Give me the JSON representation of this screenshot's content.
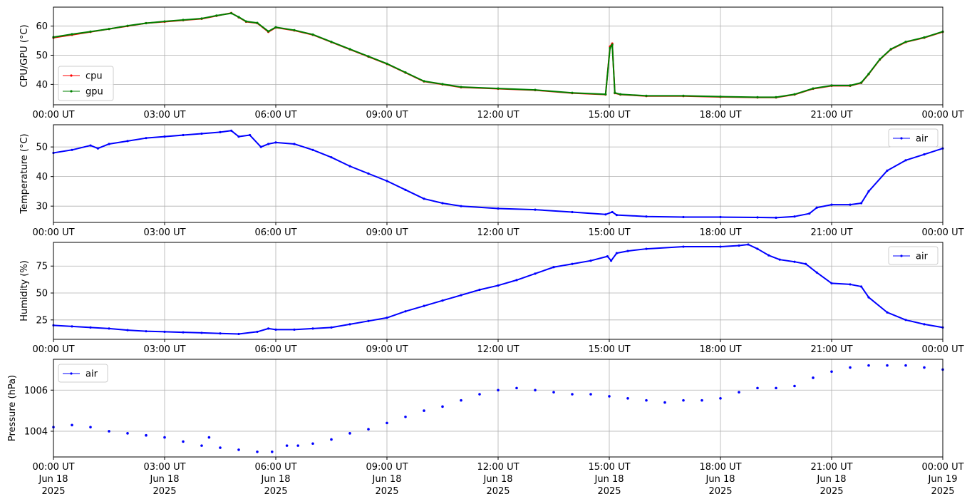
{
  "x_ticks": [
    "00:00 UT",
    "03:00 UT",
    "06:00 UT",
    "09:00 UT",
    "12:00 UT",
    "15:00 UT",
    "18:00 UT",
    "21:00 UT",
    "00:00 UT"
  ],
  "x_tick_dates": [
    "Jun 18",
    "Jun 18",
    "Jun 18",
    "Jun 18",
    "Jun 18",
    "Jun 18",
    "Jun 18",
    "Jun 18",
    "Jun 19"
  ],
  "x_tick_years": [
    "2025",
    "2025",
    "2025",
    "2025",
    "2025",
    "2025",
    "2025",
    "2025",
    "2025"
  ],
  "colors": {
    "cpu": "#ff0000",
    "gpu": "#008000",
    "air": "#0000ff",
    "grid": "#b0b0b0"
  },
  "chart_data": [
    {
      "type": "line",
      "title": "",
      "ylabel": "CPU/GPU (°C)",
      "ylim": [
        33,
        66.5
      ],
      "yticks": [
        40,
        50,
        60
      ],
      "xlim_hours": [
        0,
        24
      ],
      "grid": true,
      "legend_position": "lower-left",
      "series": [
        {
          "name": "cpu",
          "color": "#ff0000",
          "x": [
            0,
            0.5,
            1,
            1.5,
            2,
            2.5,
            3,
            3.5,
            4,
            4.4,
            4.8,
            5,
            5.2,
            5.5,
            5.8,
            6,
            6.5,
            7,
            7.5,
            8,
            8.5,
            9,
            9.5,
            10,
            10.5,
            11,
            12,
            13,
            14,
            14.9,
            15.02,
            15.08,
            15.15,
            15.3,
            16,
            17,
            18,
            19,
            19.5,
            20,
            20.5,
            21,
            21.5,
            21.8,
            22,
            22.3,
            22.6,
            23,
            23.5,
            24
          ],
          "values": [
            56,
            57,
            58,
            59,
            60,
            61,
            61.5,
            62,
            62.5,
            63.5,
            64.5,
            63,
            61.5,
            61,
            58,
            59.5,
            58.5,
            57,
            54.5,
            52,
            49.5,
            47,
            44,
            41,
            40,
            39,
            38.5,
            38,
            37,
            36.5,
            53,
            54,
            37,
            36.5,
            36,
            36,
            35.7,
            35.5,
            35.5,
            36.5,
            38.5,
            39.5,
            39.5,
            40.5,
            43.5,
            48.5,
            52,
            54.5,
            56,
            58
          ]
        },
        {
          "name": "gpu",
          "color": "#008000",
          "x": [
            0,
            0.5,
            1,
            1.5,
            2,
            2.5,
            3,
            3.5,
            4,
            4.4,
            4.8,
            5,
            5.2,
            5.5,
            5.8,
            6,
            6.5,
            7,
            7.5,
            8,
            8.5,
            9,
            9.5,
            10,
            10.5,
            11,
            12,
            13,
            14,
            14.9,
            15.02,
            15.08,
            15.15,
            15.3,
            16,
            17,
            18,
            19,
            19.5,
            20,
            20.5,
            21,
            21.5,
            21.8,
            22,
            22.3,
            22.6,
            23,
            23.5,
            24
          ],
          "values": [
            56.2,
            57.2,
            58.1,
            59,
            60.1,
            61,
            61.6,
            62.1,
            62.6,
            63.6,
            64.4,
            63.1,
            61.6,
            61.1,
            58.2,
            59.6,
            58.6,
            57.1,
            54.6,
            52.1,
            49.6,
            47.1,
            44.1,
            41.1,
            40.1,
            39.1,
            38.6,
            38.1,
            37.1,
            36.6,
            52.5,
            53.6,
            37.1,
            36.6,
            36.1,
            36.1,
            35.8,
            35.6,
            35.6,
            36.6,
            38.6,
            39.6,
            39.6,
            40.6,
            43.6,
            48.6,
            52.1,
            54.6,
            56.1,
            58.1
          ]
        }
      ]
    },
    {
      "type": "line",
      "title": "",
      "ylabel": "Temperature (°C)",
      "ylim": [
        24.5,
        57.5
      ],
      "yticks": [
        30,
        40,
        50
      ],
      "xlim_hours": [
        0,
        24
      ],
      "grid": true,
      "legend_position": "upper-right",
      "series": [
        {
          "name": "air",
          "color": "#0000ff",
          "x": [
            0,
            0.5,
            1,
            1.2,
            1.5,
            2,
            2.5,
            3,
            3.5,
            4,
            4.5,
            4.8,
            5,
            5.3,
            5.6,
            5.8,
            6,
            6.5,
            7,
            7.5,
            8,
            8.5,
            9,
            9.5,
            10,
            10.5,
            11,
            12,
            13,
            14,
            14.9,
            15.08,
            15.2,
            16,
            17,
            18,
            19,
            19.5,
            20,
            20.4,
            20.6,
            21,
            21.5,
            21.8,
            22,
            22.5,
            23,
            23.5,
            24
          ],
          "values": [
            48,
            49,
            50.5,
            49.5,
            51,
            52,
            53,
            53.5,
            54,
            54.5,
            55,
            55.5,
            53.5,
            54,
            50,
            51,
            51.5,
            51,
            49,
            46.5,
            43.5,
            41,
            38.5,
            35.5,
            32.5,
            31,
            30,
            29.2,
            28.8,
            28,
            27.2,
            28,
            27,
            26.5,
            26.3,
            26.3,
            26.2,
            26.1,
            26.5,
            27.5,
            29.5,
            30.5,
            30.5,
            31,
            35,
            42,
            45.5,
            47.5,
            49.5
          ]
        }
      ]
    },
    {
      "type": "line",
      "title": "",
      "ylabel": "Humidity (%)",
      "ylim": [
        7,
        97
      ],
      "yticks": [
        25,
        50,
        75
      ],
      "xlim_hours": [
        0,
        24
      ],
      "grid": true,
      "legend_position": "upper-right",
      "series": [
        {
          "name": "air",
          "color": "#0000ff",
          "x": [
            0,
            0.5,
            1,
            1.5,
            2,
            2.5,
            3,
            3.5,
            4,
            4.5,
            5,
            5.5,
            5.8,
            6,
            6.5,
            7,
            7.5,
            8,
            8.5,
            9,
            9.5,
            10,
            10.5,
            11,
            11.5,
            12,
            12.5,
            13,
            13.5,
            14,
            14.5,
            14.95,
            15.05,
            15.2,
            15.5,
            16,
            17,
            18,
            18.5,
            18.75,
            19,
            19.3,
            19.6,
            20,
            20.3,
            20.6,
            21,
            21.5,
            21.8,
            22,
            22.5,
            23,
            23.5,
            24
          ],
          "values": [
            20,
            19,
            18,
            17,
            15.5,
            14.5,
            14,
            13.5,
            13,
            12.5,
            12,
            14,
            17,
            16,
            16,
            17,
            18,
            21,
            24,
            27,
            33,
            38,
            43,
            48,
            53,
            57,
            62,
            68,
            74,
            77,
            80,
            84,
            80,
            87,
            89,
            91,
            93,
            93,
            94,
            95,
            91,
            85,
            81,
            79,
            77,
            69,
            59,
            58,
            56,
            46,
            32,
            25,
            21,
            18
          ]
        }
      ]
    },
    {
      "type": "scatter",
      "title": "",
      "ylabel": "Pressure (hPa)",
      "ylim": [
        1002.75,
        1007.5
      ],
      "yticks": [
        1004,
        1006
      ],
      "xlim_hours": [
        0,
        24
      ],
      "grid": true,
      "legend_position": "upper-left",
      "series": [
        {
          "name": "air",
          "color": "#0000ff",
          "x": [
            0,
            0.5,
            1,
            1.5,
            2,
            2.5,
            3,
            3.5,
            4,
            4.2,
            4.5,
            5,
            5.5,
            5.9,
            6.3,
            6.6,
            7,
            7.5,
            8,
            8.5,
            9,
            9.5,
            10,
            10.5,
            11,
            11.5,
            12,
            12.5,
            13,
            13.5,
            14,
            14.5,
            15,
            15.5,
            16,
            16.5,
            17,
            17.5,
            18,
            18.5,
            19,
            19.5,
            20,
            20.5,
            21,
            21.5,
            22,
            22.5,
            23,
            23.5,
            24
          ],
          "values": [
            1004.2,
            1004.3,
            1004.2,
            1004,
            1003.9,
            1003.8,
            1003.7,
            1003.5,
            1003.3,
            1003.7,
            1003.2,
            1003.1,
            1003,
            1003,
            1003.3,
            1003.3,
            1003.4,
            1003.6,
            1003.9,
            1004.1,
            1004.4,
            1004.7,
            1005,
            1005.2,
            1005.5,
            1005.8,
            1006,
            1006.1,
            1006,
            1005.9,
            1005.8,
            1005.8,
            1005.7,
            1005.6,
            1005.5,
            1005.4,
            1005.5,
            1005.5,
            1005.6,
            1005.9,
            1006.1,
            1006.1,
            1006.2,
            1006.6,
            1006.9,
            1007.1,
            1007.2,
            1007.2,
            1007.2,
            1007.1,
            1007
          ]
        }
      ]
    }
  ]
}
